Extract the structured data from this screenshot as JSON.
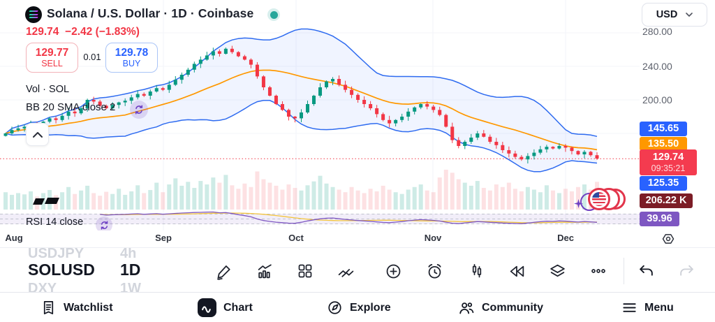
{
  "header": {
    "title": "Solana / U.S. Dollar · 1D · Coinbase",
    "last_price": "129.74",
    "change": "−2.42 (−1.83%)",
    "sell": {
      "price": "129.77",
      "label": "SELL"
    },
    "spread": "0.01",
    "buy": {
      "price": "129.78",
      "label": "BUY"
    },
    "currency_selector": "USD"
  },
  "overlays": {
    "volume_label": "Vol · SOL",
    "bb_label": "BB 20 SMA close 2",
    "rsi_label": "RSI 14 close"
  },
  "price_axis": {
    "ticks": [
      "280.00",
      "240.00",
      "200.00"
    ],
    "badges": [
      {
        "value": "145.65",
        "color": "#2962ff"
      },
      {
        "value": "135.50",
        "color": "#ff9800"
      },
      {
        "value": "129.74",
        "sub": "09:35:21",
        "color": "#f43b4f"
      },
      {
        "value": "125.35",
        "color": "#2962ff"
      },
      {
        "value": "206.22 K",
        "color": "#7c1d26"
      },
      {
        "value": "39.96",
        "color": "#7e57c2"
      }
    ]
  },
  "time_axis": {
    "labels": [
      "Aug",
      "Sep",
      "Oct",
      "Nov",
      "Dec"
    ]
  },
  "symbol_picker": {
    "items": [
      {
        "symbol": "USDJPY",
        "timeframe": "4h"
      },
      {
        "symbol": "SOLUSD",
        "timeframe": "1D"
      },
      {
        "symbol": "DXY",
        "timeframe": "1W"
      }
    ],
    "selected": "SOLUSD"
  },
  "toolbar": {
    "icons": [
      "draw",
      "indicators",
      "layout-grid",
      "compare",
      "add",
      "alert",
      "chart-type",
      "bar-replay",
      "object-tree",
      "more",
      "undo",
      "redo"
    ]
  },
  "bottom_nav": {
    "items": [
      {
        "label": "Watchlist"
      },
      {
        "label": "Chart",
        "active": true
      },
      {
        "label": "Explore"
      },
      {
        "label": "Community"
      },
      {
        "label": "Menu"
      }
    ]
  },
  "chart_data": {
    "type": "candlestick",
    "symbol": "SOLUSD",
    "interval": "1D",
    "exchange": "Coinbase",
    "x_labels": [
      "Aug",
      "Sep",
      "Oct",
      "Nov",
      "Dec"
    ],
    "visible_price_ticks": [
      280,
      240,
      200
    ],
    "current_price": 129.74,
    "countdown": "09:35:21",
    "volume_label": "206.22 K",
    "rsi_value": 39.96,
    "bb_upper": 145.65,
    "bb_basis": 135.5,
    "bb_lower": 125.35,
    "indicators": [
      "BB 20 SMA close 2",
      "Vol SOL",
      "RSI 14 close"
    ],
    "up_color": "#089981",
    "down_color": "#f23645",
    "band_color": "#2e6bf0",
    "basis_color": "#ff9800",
    "rsi_color": "#7e57c2",
    "rsi_ma_color": "#f3c53d",
    "closes": [
      160,
      164,
      166,
      168,
      171,
      169,
      174,
      178,
      176,
      181,
      186,
      184,
      190,
      200,
      198,
      193,
      190,
      194,
      197,
      199,
      203,
      207,
      205,
      210,
      214,
      212,
      218,
      224,
      230,
      236,
      243,
      248,
      253,
      258,
      255,
      261,
      257,
      252,
      248,
      242,
      228,
      215,
      205,
      195,
      188,
      180,
      178,
      185,
      195,
      205,
      215,
      222,
      225,
      218,
      212,
      206,
      200,
      195,
      190,
      183,
      176,
      172,
      176,
      180,
      186,
      191,
      195,
      192,
      188,
      182,
      168,
      152,
      145,
      150,
      155,
      160,
      156,
      150,
      146,
      140,
      136,
      132,
      129,
      133,
      137,
      141,
      144,
      142,
      145,
      143,
      139,
      135,
      138,
      134,
      130
    ],
    "volumes": [
      0.4,
      0.34,
      0.38,
      0.35,
      0.42,
      0.3,
      0.38,
      0.45,
      0.33,
      0.4,
      0.52,
      0.36,
      0.44,
      0.55,
      0.38,
      0.32,
      0.41,
      0.36,
      0.48,
      0.34,
      0.42,
      0.56,
      0.38,
      0.45,
      0.62,
      0.4,
      0.58,
      0.72,
      0.55,
      0.64,
      0.5,
      0.66,
      0.58,
      0.74,
      0.62,
      0.8,
      0.56,
      0.48,
      0.6,
      0.52,
      0.88,
      0.7,
      0.62,
      0.55,
      0.46,
      0.58,
      0.5,
      0.44,
      0.56,
      0.65,
      0.78,
      0.6,
      0.52,
      0.46,
      0.4,
      0.52,
      0.44,
      0.38,
      0.48,
      0.42,
      0.55,
      0.46,
      0.4,
      0.36,
      0.46,
      0.52,
      0.58,
      0.44,
      0.4,
      0.74,
      0.92,
      0.85,
      0.7,
      0.62,
      0.55,
      0.66,
      0.5,
      0.44,
      0.58,
      0.52,
      0.62,
      0.48,
      0.42,
      0.52,
      0.46,
      0.4,
      0.56,
      0.44,
      0.38,
      0.48,
      0.42,
      0.52,
      0.58,
      0.46,
      0.64
    ]
  }
}
